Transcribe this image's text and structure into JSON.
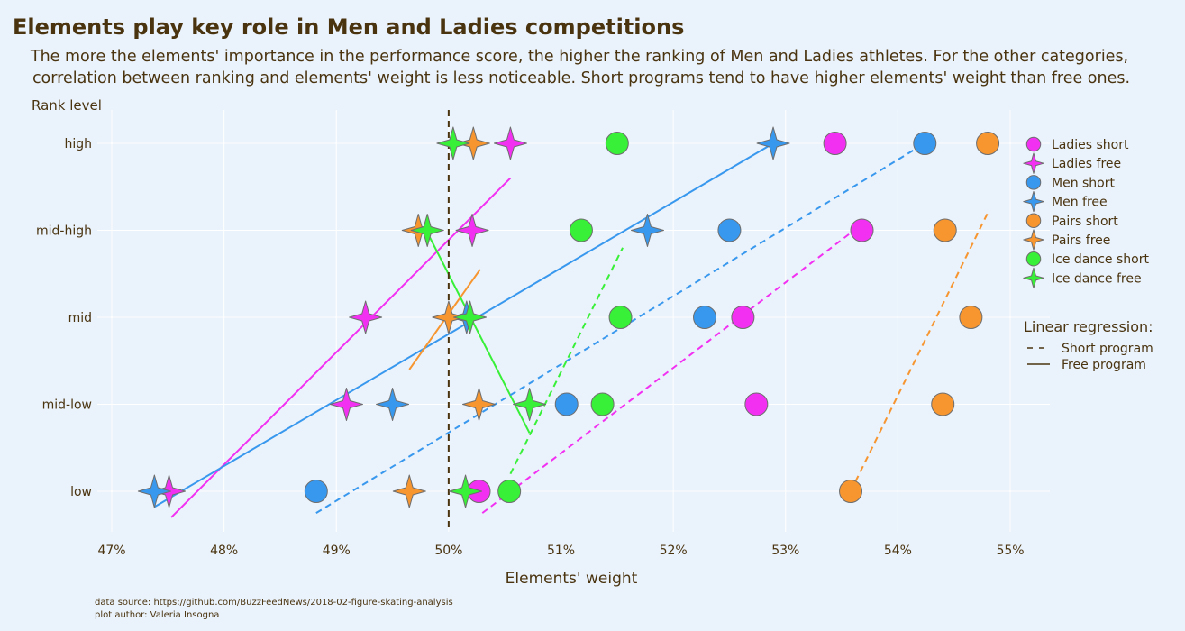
{
  "page": {
    "title": "Elements play key role in Men and Ladies competitions",
    "subtitle_lines": [
      "The more the elements' importance in the performance score, the higher the ranking of Men and Ladies athletes. For the other categories,",
      "correlation between ranking and elements' weight is less noticeable. Short programs tend to have higher elements' weight than free ones."
    ],
    "footer_lines": [
      "data source: https://github.com/BuzzFeedNews/2018-02-figure-skating-analysis",
      "plot author: Valeria Insogna"
    ]
  },
  "colors": {
    "background": "#EAF2FB",
    "grid": "#FFFFFF",
    "text": "#4A3410",
    "reference_line": "#4A3410",
    "marker_edge": "#6E6E6E"
  },
  "chart_data": {
    "type": "scatter",
    "xlabel": "Elements' weight",
    "ylabel": "Rank level",
    "xlim": [
      46.95,
      55.35
    ],
    "x_ticks": [
      47,
      48,
      49,
      50,
      51,
      52,
      53,
      54,
      55
    ],
    "x_tick_labels": [
      "47%",
      "48%",
      "49%",
      "50%",
      "51%",
      "52%",
      "53%",
      "54%",
      "55%"
    ],
    "y_categories": [
      "low",
      "mid-low",
      "mid",
      "mid-high",
      "high"
    ],
    "grid": true,
    "reference_x": 50,
    "series": [
      {
        "name": "Ladies short",
        "color": "#F230F2",
        "marker": "circle",
        "points": [
          [
            53.44,
            "high"
          ],
          [
            53.68,
            "mid-high"
          ],
          [
            52.62,
            "mid"
          ],
          [
            52.74,
            "mid-low"
          ],
          [
            50.27,
            "low"
          ]
        ]
      },
      {
        "name": "Ladies free",
        "color": "#F230F2",
        "marker": "star",
        "points": [
          [
            50.55,
            "high"
          ],
          [
            50.21,
            "mid-high"
          ],
          [
            49.26,
            "mid"
          ],
          [
            49.09,
            "mid-low"
          ],
          [
            47.51,
            "low"
          ]
        ]
      },
      {
        "name": "Men short",
        "color": "#3898EE",
        "marker": "circle",
        "points": [
          [
            54.24,
            "high"
          ],
          [
            52.5,
            "mid-high"
          ],
          [
            52.28,
            "mid"
          ],
          [
            51.05,
            "mid-low"
          ],
          [
            48.82,
            "low"
          ]
        ]
      },
      {
        "name": "Men free",
        "color": "#3898EE",
        "marker": "star",
        "points": [
          [
            52.89,
            "high"
          ],
          [
            51.77,
            "mid-high"
          ],
          [
            50.16,
            "mid"
          ],
          [
            49.5,
            "mid-low"
          ],
          [
            47.38,
            "low"
          ]
        ]
      },
      {
        "name": "Pairs short",
        "color": "#F7952F",
        "marker": "circle",
        "points": [
          [
            54.8,
            "high"
          ],
          [
            54.42,
            "mid-high"
          ],
          [
            54.65,
            "mid"
          ],
          [
            54.4,
            "mid-low"
          ],
          [
            53.58,
            "low"
          ]
        ]
      },
      {
        "name": "Pairs free",
        "color": "#F7952F",
        "marker": "star",
        "points": [
          [
            50.22,
            "high"
          ],
          [
            49.73,
            "mid-high"
          ],
          [
            50.0,
            "mid"
          ],
          [
            50.27,
            "mid-low"
          ],
          [
            49.65,
            "low"
          ]
        ]
      },
      {
        "name": "Ice dance short",
        "color": "#38F038",
        "marker": "circle",
        "points": [
          [
            51.5,
            "high"
          ],
          [
            51.18,
            "mid-high"
          ],
          [
            51.53,
            "mid"
          ],
          [
            51.37,
            "mid-low"
          ],
          [
            50.54,
            "low"
          ]
        ]
      },
      {
        "name": "Ice dance free",
        "color": "#38F038",
        "marker": "star",
        "points": [
          [
            50.04,
            "high"
          ],
          [
            49.81,
            "mid-high"
          ],
          [
            50.19,
            "mid"
          ],
          [
            50.72,
            "mid-low"
          ],
          [
            50.15,
            "low"
          ]
        ]
      }
    ],
    "regression_lines": [
      {
        "color": "#F230F2",
        "style": "solid",
        "from": [
          47.53,
          -0.3
        ],
        "to": [
          50.55,
          3.6
        ]
      },
      {
        "color": "#3898EE",
        "style": "solid",
        "from": [
          47.38,
          -0.18
        ],
        "to": [
          52.89,
          4.0
        ]
      },
      {
        "color": "#F7952F",
        "style": "solid",
        "from": [
          49.65,
          1.4
        ],
        "to": [
          50.28,
          2.55
        ]
      },
      {
        "color": "#38F038",
        "style": "solid",
        "from": [
          49.8,
          3.0
        ],
        "to": [
          50.72,
          0.67
        ]
      },
      {
        "color": "#F230F2",
        "style": "dashed",
        "from": [
          50.3,
          -0.25
        ],
        "to": [
          53.58,
          2.97
        ]
      },
      {
        "color": "#3898EE",
        "style": "dashed",
        "from": [
          48.82,
          -0.25
        ],
        "to": [
          54.24,
          4.0
        ]
      },
      {
        "color": "#F7952F",
        "style": "dashed",
        "from": [
          53.58,
          0.0
        ],
        "to": [
          54.8,
          3.2
        ]
      },
      {
        "color": "#38F038",
        "style": "dashed",
        "from": [
          50.55,
          0.2
        ],
        "to": [
          51.55,
          2.8
        ]
      }
    ],
    "legend": {
      "position": "right",
      "entries": [
        "Ladies short",
        "Ladies free",
        "Men short",
        "Men free",
        "Pairs short",
        "Pairs free",
        "Ice dance short",
        "Ice dance free"
      ],
      "regression_title": "Linear regression:",
      "regression_entries": [
        {
          "label": "Short program",
          "style": "dashed"
        },
        {
          "label": "Free program",
          "style": "solid"
        }
      ]
    }
  }
}
